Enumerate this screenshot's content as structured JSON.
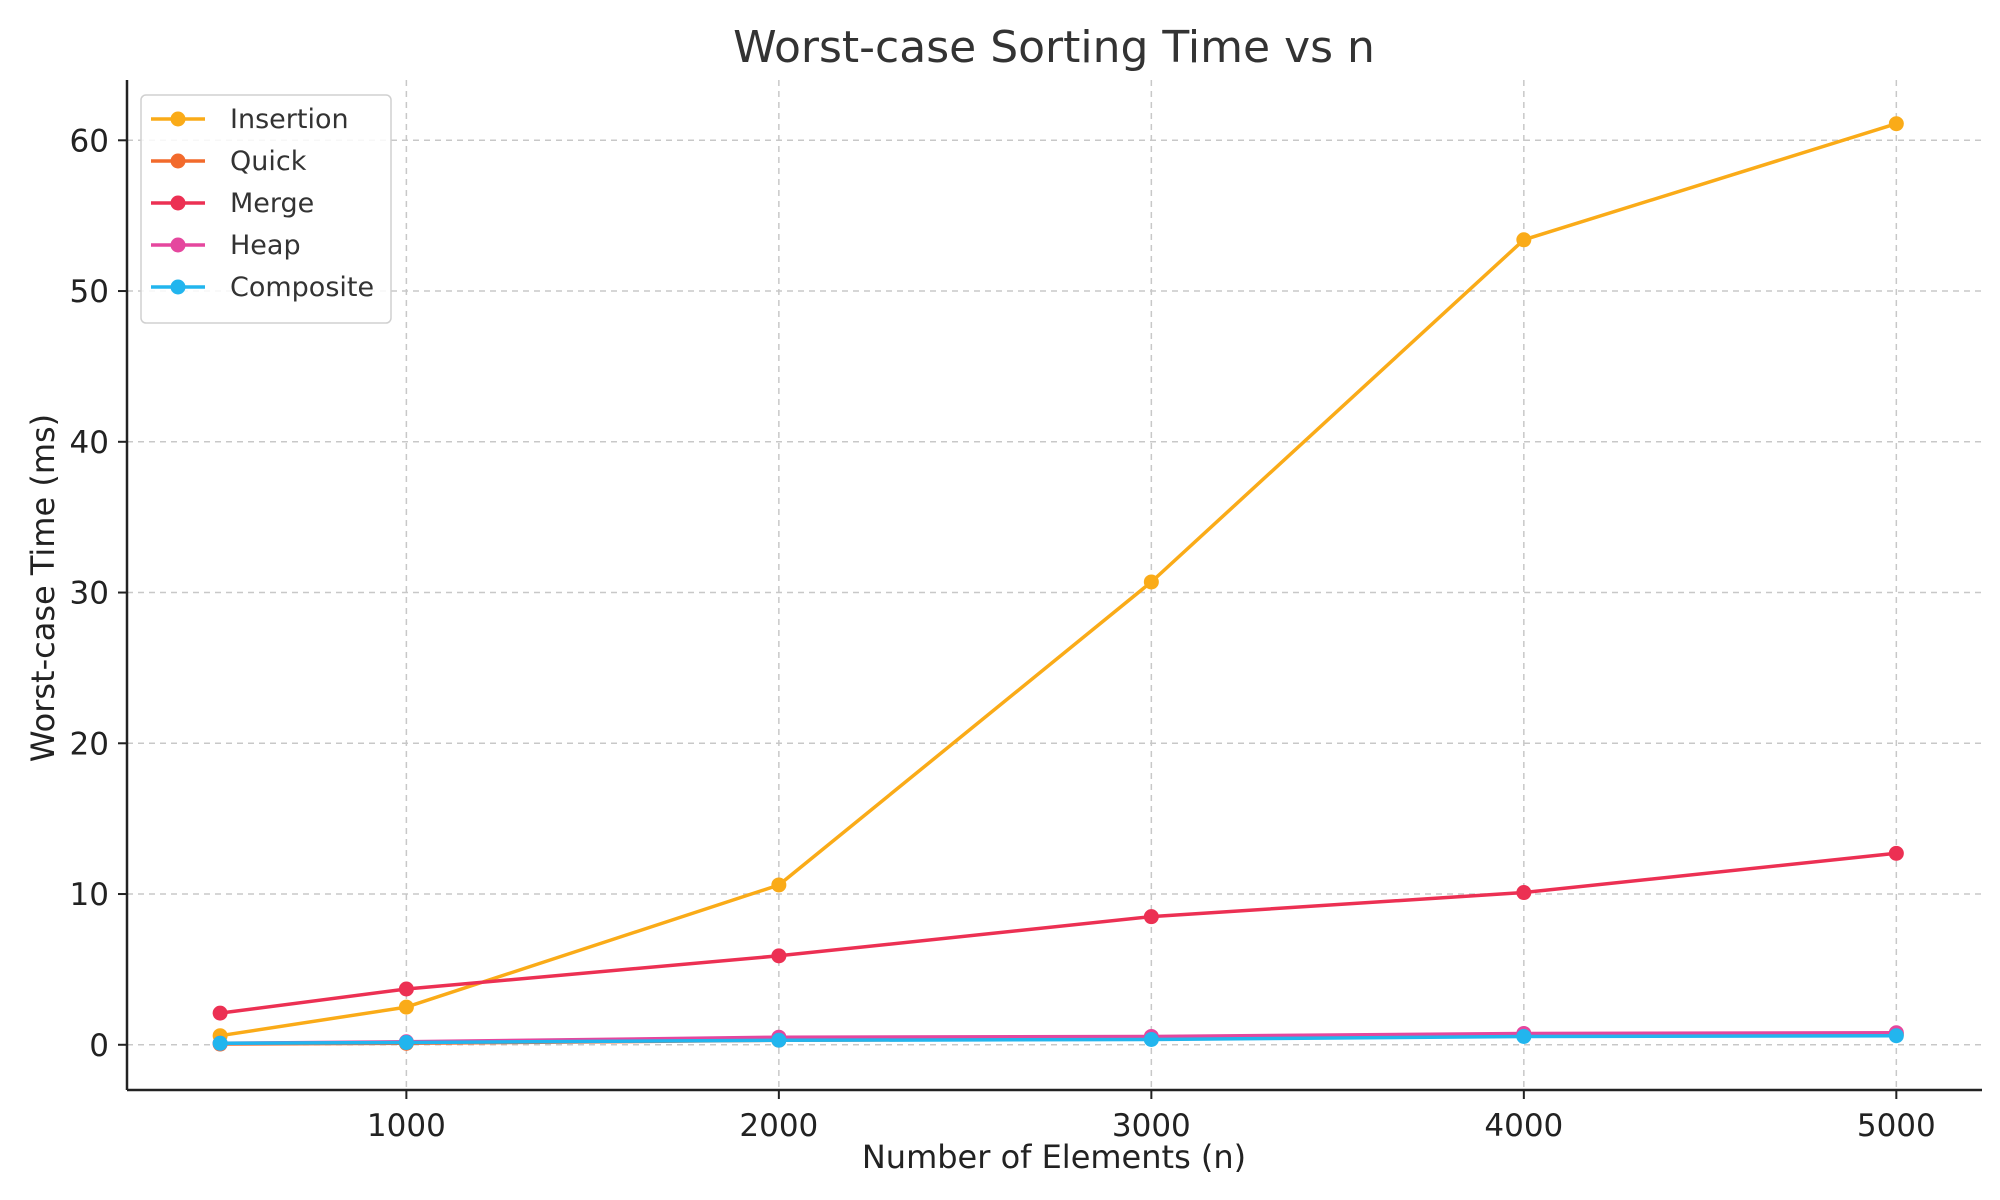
{
  "chart_data": {
    "type": "line",
    "title": "Worst-case Sorting Time vs n",
    "xlabel": "Number of Elements (n)",
    "ylabel": "Worst-case Time (ms)",
    "x": [
      500,
      1000,
      2000,
      3000,
      4000,
      5000
    ],
    "xlim": [
      250,
      5230
    ],
    "ylim": [
      -3,
      64
    ],
    "xticks": [
      1000,
      2000,
      3000,
      4000,
      5000
    ],
    "yticks": [
      0,
      10,
      20,
      30,
      40,
      50,
      60
    ],
    "grid": true,
    "legend_position": "top-left",
    "series": [
      {
        "name": "Insertion",
        "color": "#FAAB18",
        "values": [
          0.6,
          2.5,
          10.6,
          30.7,
          53.4,
          61.1
        ]
      },
      {
        "name": "Quick",
        "color": "#F26A2C",
        "values": [
          0.05,
          0.1,
          0.3,
          0.4,
          0.6,
          0.7
        ]
      },
      {
        "name": "Merge",
        "color": "#EC3053",
        "values": [
          2.1,
          3.7,
          5.9,
          8.5,
          10.1,
          12.7
        ]
      },
      {
        "name": "Heap",
        "color": "#E5479E",
        "values": [
          0.1,
          0.2,
          0.5,
          0.55,
          0.75,
          0.8
        ]
      },
      {
        "name": "Composite",
        "color": "#22B5EE",
        "values": [
          0.1,
          0.15,
          0.3,
          0.35,
          0.55,
          0.6
        ]
      }
    ]
  }
}
